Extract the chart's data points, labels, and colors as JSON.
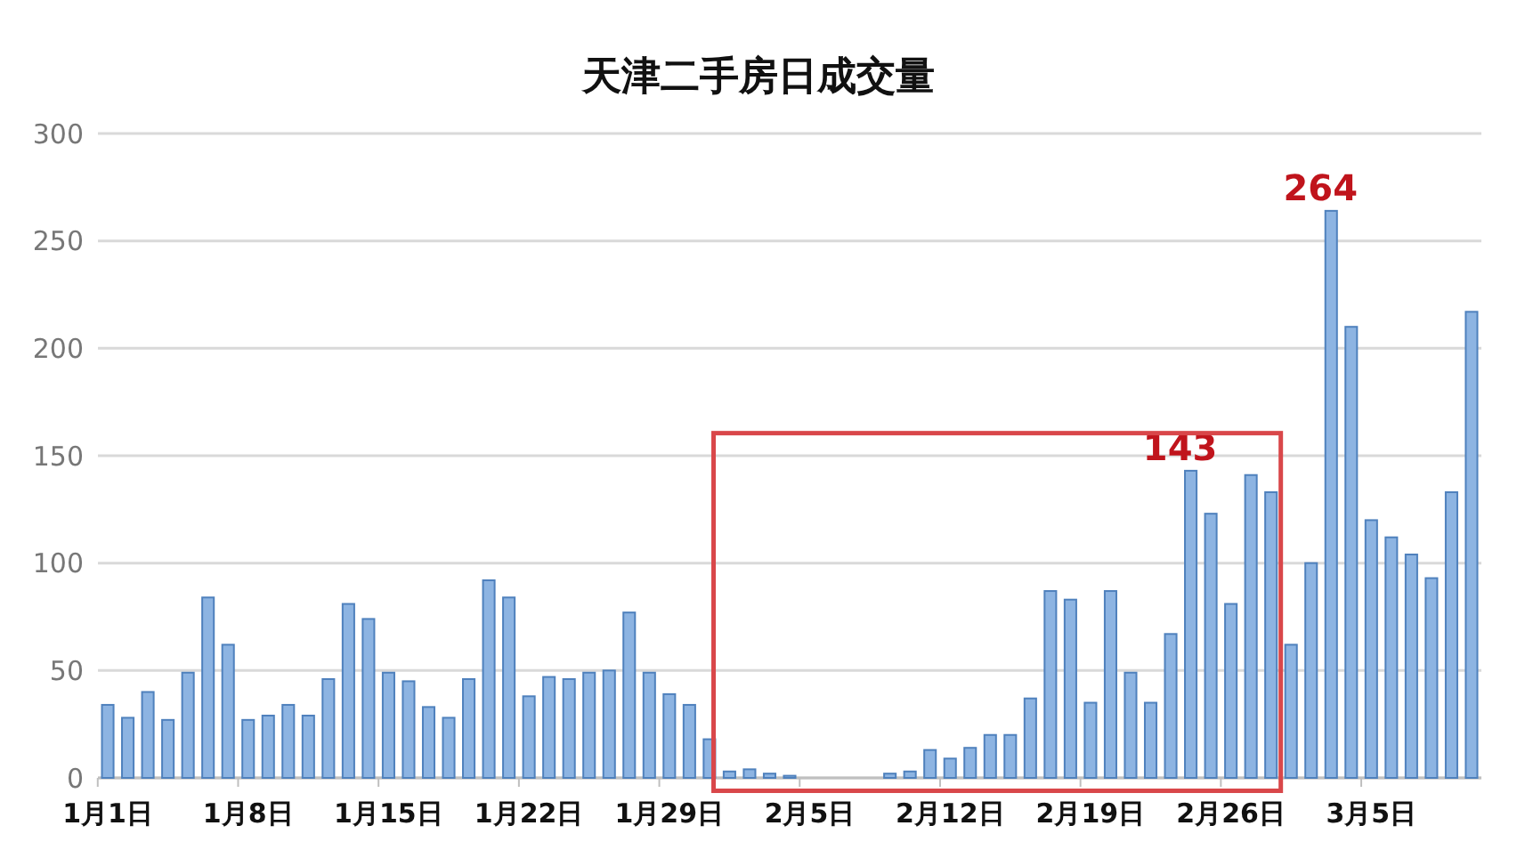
{
  "chart_data": {
    "type": "bar",
    "title": "天津二手房日成交量",
    "categories": [
      "1月1日",
      null,
      null,
      null,
      null,
      null,
      null,
      "1月8日",
      null,
      null,
      null,
      null,
      null,
      null,
      "1月15日",
      null,
      null,
      null,
      null,
      null,
      null,
      "1月22日",
      null,
      null,
      null,
      null,
      null,
      null,
      "1月29日",
      null,
      null,
      null,
      null,
      null,
      null,
      "2月5日",
      null,
      null,
      null,
      null,
      null,
      null,
      "2月12日",
      null,
      null,
      null,
      null,
      null,
      null,
      "2月19日",
      null,
      null,
      null,
      null,
      null,
      null,
      "2月26日",
      null,
      null,
      null,
      null,
      null,
      null,
      "3月5日",
      null,
      null,
      null,
      null,
      null
    ],
    "values": [
      34,
      28,
      40,
      27,
      49,
      84,
      62,
      27,
      29,
      34,
      29,
      46,
      81,
      74,
      49,
      45,
      33,
      28,
      46,
      92,
      84,
      38,
      47,
      46,
      49,
      50,
      77,
      49,
      39,
      34,
      18,
      3,
      4,
      2,
      1,
      0,
      0,
      0,
      0,
      2,
      3,
      13,
      9,
      14,
      20,
      20,
      37,
      87,
      83,
      35,
      87,
      49,
      35,
      67,
      143,
      123,
      81,
      141,
      133,
      62,
      100,
      264,
      210,
      120,
      112,
      104,
      93,
      133,
      217
    ],
    "value_labels": [
      null,
      null,
      null,
      null,
      null,
      null,
      null,
      null,
      null,
      null,
      null,
      null,
      null,
      null,
      null,
      null,
      null,
      null,
      null,
      null,
      null,
      null,
      null,
      null,
      null,
      null,
      null,
      null,
      null,
      null,
      null,
      null,
      null,
      null,
      null,
      null,
      null,
      null,
      null,
      null,
      null,
      null,
      null,
      null,
      null,
      null,
      null,
      null,
      null,
      null,
      null,
      null,
      null,
      null,
      "143",
      null,
      null,
      null,
      null,
      null,
      null,
      "264",
      null,
      null,
      null,
      null,
      null,
      null,
      null
    ],
    "color": "#8db4e2",
    "ylim": [
      0,
      300
    ],
    "yticks": [
      0,
      50,
      100,
      150,
      200,
      250,
      300
    ],
    "grid": "y"
  }
}
